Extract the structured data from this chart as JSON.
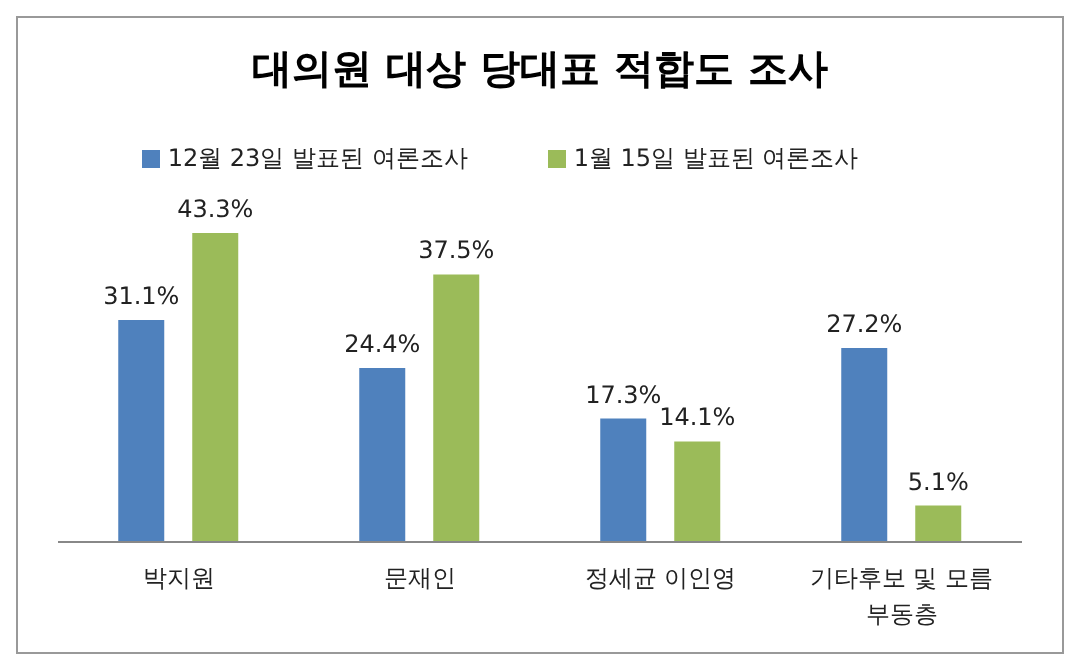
{
  "chart_data": {
    "type": "bar",
    "title": "대의원 대상 당대표 적합도 조사",
    "categories": [
      "박지원",
      "문재인",
      "정세균 이인영",
      "기타후보 및 모름 부동층"
    ],
    "series": [
      {
        "name": "12월 23일 발표된 여론조사",
        "color": "#4f81bd",
        "values": [
          31.1,
          24.4,
          17.3,
          27.2
        ],
        "value_labels": [
          "31.1%",
          "24.4%",
          "17.3%",
          "27.2%"
        ]
      },
      {
        "name": "1월 15일 발표된 여론조사",
        "color": "#9bbb59",
        "values": [
          43.3,
          37.5,
          14.1,
          5.1
        ],
        "value_labels": [
          "43.3%",
          "37.5%",
          "14.1%",
          "5.1%"
        ]
      }
    ],
    "legend": "top",
    "grid": false
  }
}
